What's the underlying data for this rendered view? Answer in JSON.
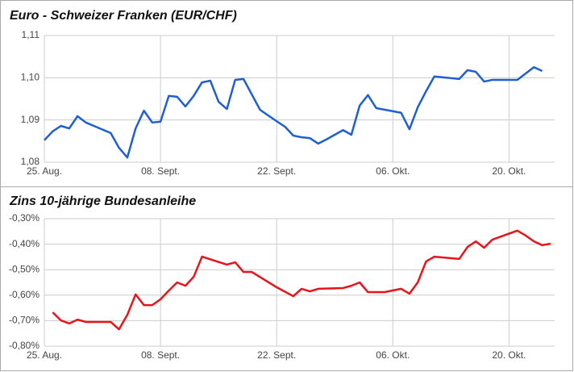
{
  "chart_data": [
    {
      "type": "line",
      "title": "Euro - Schweizer Franken (EUR/CHF)",
      "x": [
        0,
        1,
        2,
        3,
        4,
        5,
        8,
        9,
        10,
        11,
        12,
        13,
        14,
        15,
        16,
        17,
        18,
        19,
        20,
        21,
        22,
        23,
        24,
        26,
        28,
        29,
        30,
        31,
        32,
        33,
        34,
        36,
        37,
        38,
        39,
        40,
        43,
        44,
        45,
        46,
        47,
        50,
        51,
        52,
        53,
        54,
        57,
        58,
        59,
        60
      ],
      "series": [
        {
          "color": "#1f5fcf",
          "values": [
            1.0852,
            1.0873,
            1.0886,
            1.088,
            1.0909,
            1.0894,
            1.0869,
            1.0834,
            1.0811,
            1.088,
            1.0922,
            1.0894,
            1.0896,
            1.0957,
            1.0955,
            1.0932,
            1.0957,
            1.0989,
            1.0993,
            1.0943,
            1.0926,
            1.0995,
            1.0997,
            1.0924,
            1.0897,
            1.0884,
            1.0863,
            1.0859,
            1.0857,
            1.0844,
            1.0854,
            1.0876,
            1.0865,
            1.0934,
            1.0959,
            1.0928,
            1.0917,
            1.0878,
            1.093,
            1.0968,
            1.1003,
            1.0997,
            1.1018,
            1.1014,
            1.0991,
            1.0995,
            1.0995,
            1.101,
            1.1025,
            1.1016
          ]
        }
      ],
      "xlim": [
        0,
        61.5
      ],
      "xticks": [
        {
          "value": 0,
          "label": "25. Aug."
        },
        {
          "value": 14,
          "label": "08. Sept."
        },
        {
          "value": 28,
          "label": "22. Sept."
        },
        {
          "value": 42,
          "label": "06. Okt."
        },
        {
          "value": 56,
          "label": "20. Okt."
        }
      ],
      "ylim": [
        1.08,
        1.11
      ],
      "yticks": [
        {
          "value": 1.08,
          "label": "1,08"
        },
        {
          "value": 1.09,
          "label": "1,09"
        },
        {
          "value": 1.1,
          "label": "1,10"
        },
        {
          "value": 1.11,
          "label": "1,11"
        }
      ],
      "grid": true
    },
    {
      "type": "line",
      "title": "Zins 10-jährige Bundesanleihe",
      "x": [
        1,
        2,
        3,
        4,
        5,
        8,
        9,
        10,
        11,
        12,
        13,
        14,
        15,
        16,
        17,
        18,
        19,
        22,
        23,
        24,
        25,
        28,
        30,
        31,
        32,
        33,
        36,
        37,
        38,
        39,
        40,
        41,
        43,
        44,
        45,
        46,
        47,
        50,
        51,
        52,
        53,
        54,
        57,
        58,
        59,
        60,
        61
      ],
      "series": [
        {
          "color": "#e8141a",
          "values": [
            -0.667,
            -0.699,
            -0.711,
            -0.696,
            -0.705,
            -0.705,
            -0.734,
            -0.677,
            -0.597,
            -0.639,
            -0.639,
            -0.616,
            -0.582,
            -0.55,
            -0.563,
            -0.528,
            -0.449,
            -0.48,
            -0.471,
            -0.509,
            -0.509,
            -0.569,
            -0.604,
            -0.575,
            -0.585,
            -0.575,
            -0.572,
            -0.563,
            -0.55,
            -0.588,
            -0.588,
            -0.588,
            -0.575,
            -0.594,
            -0.55,
            -0.468,
            -0.449,
            -0.458,
            -0.411,
            -0.389,
            -0.414,
            -0.382,
            -0.347,
            -0.366,
            -0.389,
            -0.404,
            -0.398
          ]
        }
      ],
      "xlim": [
        0,
        61.5
      ],
      "xticks": [
        {
          "value": 0,
          "label": "25. Aug."
        },
        {
          "value": 14,
          "label": "08. Sept."
        },
        {
          "value": 28,
          "label": "22. Sept."
        },
        {
          "value": 42,
          "label": "06. Okt."
        },
        {
          "value": 56,
          "label": "20. Okt."
        }
      ],
      "ylim": [
        -0.8,
        -0.3
      ],
      "yticks": [
        {
          "value": -0.8,
          "label": "-0,80%"
        },
        {
          "value": -0.7,
          "label": "-0,70%"
        },
        {
          "value": -0.6,
          "label": "-0,60%"
        },
        {
          "value": -0.5,
          "label": "-0,50%"
        },
        {
          "value": -0.4,
          "label": "-0,40%"
        },
        {
          "value": -0.3,
          "label": "-0,30%"
        }
      ],
      "grid": true
    }
  ]
}
